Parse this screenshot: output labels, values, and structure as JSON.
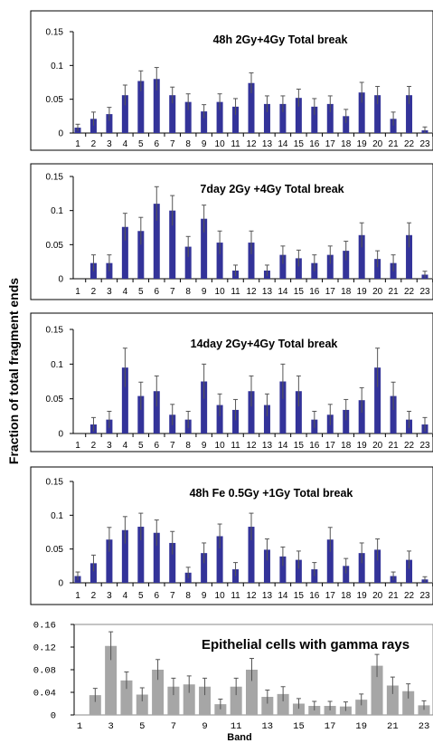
{
  "ylabel": "Fraction of total fragment ends",
  "xlabel": "Band",
  "chart_data": [
    {
      "type": "bar",
      "title": "48h 2Gy+4Gy Total break",
      "ylim": [
        0,
        0.15
      ],
      "yticks": [
        "0",
        "0.05",
        "0.1",
        "0.15"
      ],
      "categories": [
        "1",
        "2",
        "3",
        "4",
        "5",
        "6",
        "7",
        "8",
        "9",
        "10",
        "11",
        "12",
        "13",
        "14",
        "15",
        "16",
        "17",
        "18",
        "19",
        "20",
        "21",
        "22",
        "23"
      ],
      "values": [
        0.008,
        0.021,
        0.028,
        0.056,
        0.077,
        0.08,
        0.056,
        0.046,
        0.032,
        0.046,
        0.039,
        0.074,
        0.043,
        0.043,
        0.052,
        0.039,
        0.043,
        0.025,
        0.06,
        0.056,
        0.021,
        0.056,
        0.004
      ],
      "errors": [
        0.005,
        0.01,
        0.01,
        0.015,
        0.015,
        0.017,
        0.012,
        0.012,
        0.01,
        0.012,
        0.012,
        0.015,
        0.012,
        0.012,
        0.013,
        0.012,
        0.012,
        0.01,
        0.015,
        0.013,
        0.01,
        0.013,
        0.005
      ],
      "color": "#333399",
      "errorbar_color": "#555555"
    },
    {
      "type": "bar",
      "title": "7day 2Gy +4Gy Total break",
      "ylim": [
        0,
        0.15
      ],
      "yticks": [
        "0",
        "0.05",
        "0.1",
        "0.15"
      ],
      "categories": [
        "1",
        "2",
        "3",
        "4",
        "5",
        "6",
        "7",
        "8",
        "9",
        "10",
        "11",
        "12",
        "13",
        "14",
        "15",
        "16",
        "17",
        "18",
        "19",
        "20",
        "21",
        "22",
        "23"
      ],
      "values": [
        0,
        0.023,
        0.023,
        0.076,
        0.07,
        0.11,
        0.1,
        0.047,
        0.088,
        0.053,
        0.012,
        0.053,
        0.012,
        0.035,
        0.03,
        0.023,
        0.035,
        0.041,
        0.064,
        0.029,
        0.023,
        0.064,
        0.006
      ],
      "errors": [
        0,
        0.012,
        0.012,
        0.02,
        0.02,
        0.025,
        0.022,
        0.015,
        0.02,
        0.017,
        0.008,
        0.017,
        0.008,
        0.013,
        0.012,
        0.012,
        0.013,
        0.014,
        0.018,
        0.012,
        0.012,
        0.018,
        0.005
      ],
      "color": "#333399",
      "errorbar_color": "#555555"
    },
    {
      "type": "bar",
      "title": "14day 2Gy+4Gy Total break",
      "ylim": [
        0,
        0.15
      ],
      "yticks": [
        "0",
        "0.05",
        "0.1",
        "0.15"
      ],
      "categories": [
        "1",
        "2",
        "3",
        "4",
        "5",
        "6",
        "7",
        "8",
        "9",
        "10",
        "11",
        "12",
        "13",
        "14",
        "15",
        "16",
        "17",
        "18",
        "19",
        "20",
        "21",
        "22",
        "23"
      ],
      "values": [
        0,
        0.013,
        0.02,
        0.095,
        0.054,
        0.061,
        0.027,
        0.02,
        0.075,
        0.041,
        0.034,
        0.061,
        0.041,
        0.075,
        0.061,
        0.02,
        0.027,
        0.034,
        0.048,
        0.095,
        0.054,
        0.02,
        0.013
      ],
      "errors": [
        0,
        0.01,
        0.012,
        0.028,
        0.02,
        0.022,
        0.015,
        0.012,
        0.025,
        0.016,
        0.015,
        0.022,
        0.016,
        0.025,
        0.022,
        0.012,
        0.015,
        0.015,
        0.018,
        0.028,
        0.02,
        0.012,
        0.01
      ],
      "color": "#333399",
      "errorbar_color": "#555555"
    },
    {
      "type": "bar",
      "title": "48h Fe 0.5Gy +1Gy Total break",
      "ylim": [
        0,
        0.15
      ],
      "yticks": [
        "0",
        "0.05",
        "0.1",
        "0.15"
      ],
      "categories": [
        "1",
        "2",
        "3",
        "4",
        "5",
        "6",
        "7",
        "8",
        "9",
        "10",
        "11",
        "12",
        "13",
        "14",
        "15",
        "16",
        "17",
        "18",
        "19",
        "20",
        "21",
        "22",
        "23"
      ],
      "values": [
        0.01,
        0.029,
        0.064,
        0.078,
        0.083,
        0.074,
        0.059,
        0.015,
        0.044,
        0.069,
        0.02,
        0.083,
        0.049,
        0.039,
        0.034,
        0.02,
        0.064,
        0.025,
        0.044,
        0.049,
        0.01,
        0.034,
        0.005
      ],
      "errors": [
        0.006,
        0.012,
        0.018,
        0.02,
        0.02,
        0.019,
        0.017,
        0.008,
        0.015,
        0.018,
        0.01,
        0.02,
        0.016,
        0.014,
        0.013,
        0.01,
        0.018,
        0.011,
        0.015,
        0.016,
        0.006,
        0.013,
        0.004
      ],
      "color": "#333399",
      "errorbar_color": "#555555"
    },
    {
      "type": "bar",
      "title": "Epithelial cells with gamma rays",
      "ylim": [
        0,
        0.16
      ],
      "yticks": [
        "0",
        "0.04",
        "0.08",
        "0.12",
        "0.16"
      ],
      "xticks": [
        "1",
        "3",
        "5",
        "7",
        "9",
        "11",
        "13",
        "15",
        "17",
        "19",
        "21",
        "23"
      ],
      "categories": [
        "1",
        "2",
        "3",
        "4",
        "5",
        "6",
        "7",
        "8",
        "9",
        "10",
        "11",
        "12",
        "13",
        "14",
        "15",
        "16",
        "17",
        "18",
        "19",
        "20",
        "21",
        "22",
        "23"
      ],
      "values": [
        0,
        0.035,
        0.122,
        0.061,
        0.036,
        0.08,
        0.05,
        0.054,
        0.05,
        0.019,
        0.05,
        0.08,
        0.032,
        0.037,
        0.02,
        0.016,
        0.016,
        0.015,
        0.027,
        0.087,
        0.052,
        0.042,
        0.017
      ],
      "errors": [
        0,
        0.012,
        0.025,
        0.015,
        0.012,
        0.018,
        0.015,
        0.015,
        0.015,
        0.009,
        0.015,
        0.02,
        0.012,
        0.013,
        0.009,
        0.008,
        0.008,
        0.008,
        0.01,
        0.02,
        0.015,
        0.013,
        0.008
      ],
      "color": "#a6a6a6",
      "errorbar_color": "#555555"
    }
  ]
}
